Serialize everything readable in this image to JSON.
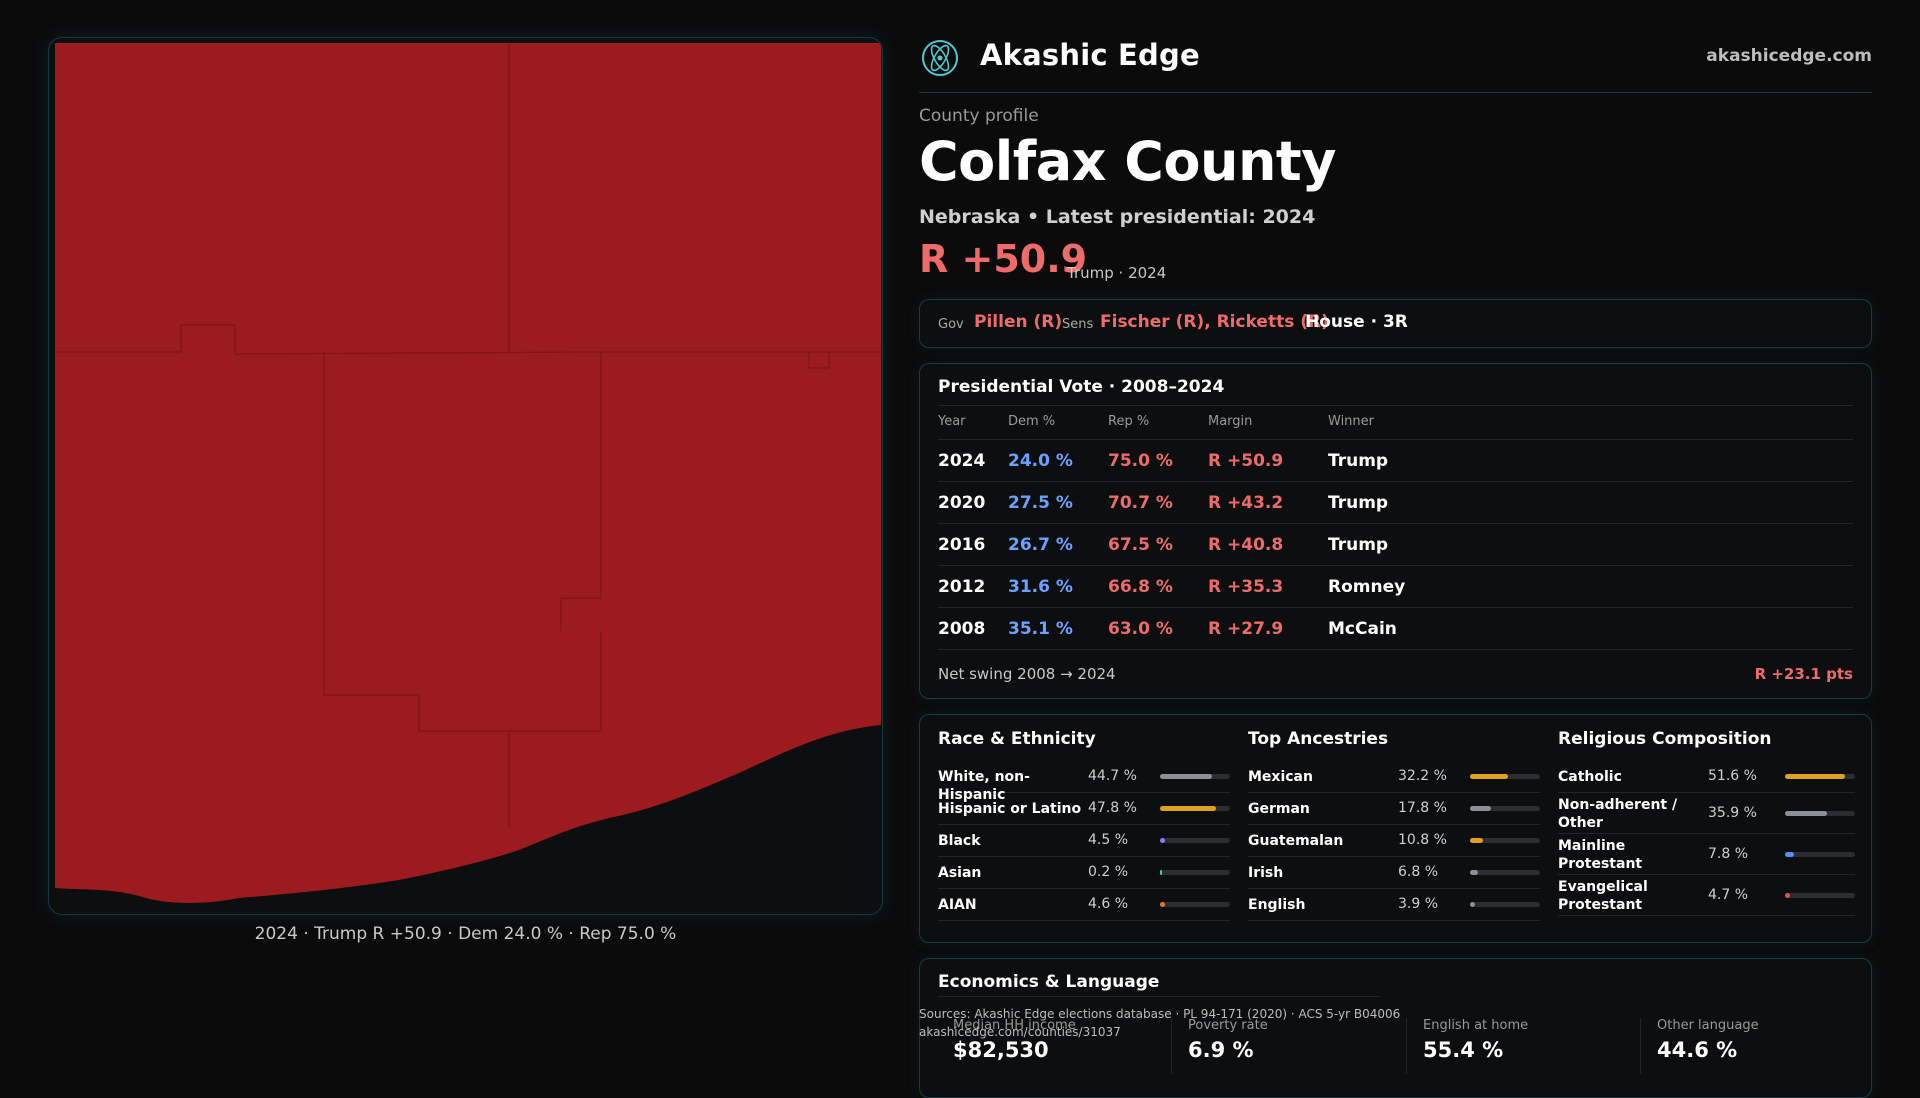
{
  "map": {
    "fill_color": "#9b1b1f",
    "caption": "2024 · Trump R +50.9 · Dem 24.0 % · Rep 75.0 %"
  },
  "header": {
    "brand": "Akashic Edge",
    "site": "akashicedge.com",
    "logo_icon": "atom-logo-icon"
  },
  "profile": {
    "kicker": "County profile",
    "title": "Colfax County",
    "subtitle": "Nebraska • Latest presidential: 2024",
    "margin": "R +50.9",
    "margin_note": "Trump · 2024"
  },
  "representation": {
    "gov_label": "Gov",
    "gov_value": "Pillen (R)",
    "sens_label": "Sens",
    "sens_value": "Fischer (R), Ricketts (R)",
    "house_value": "House · 3R"
  },
  "presidential": {
    "title": "Presidential Vote · 2008–2024",
    "headers": [
      "Year",
      "Dem %",
      "Rep %",
      "Margin",
      "Winner"
    ],
    "rows": [
      {
        "year": "2024",
        "dem": "24.0 %",
        "rep": "75.0 %",
        "margin": "R +50.9",
        "winner": "Trump"
      },
      {
        "year": "2020",
        "dem": "27.5 %",
        "rep": "70.7 %",
        "margin": "R +43.2",
        "winner": "Trump"
      },
      {
        "year": "2016",
        "dem": "26.7 %",
        "rep": "67.5 %",
        "margin": "R +40.8",
        "winner": "Trump"
      },
      {
        "year": "2012",
        "dem": "31.6 %",
        "rep": "66.8 %",
        "margin": "R +35.3",
        "winner": "Romney"
      },
      {
        "year": "2008",
        "dem": "35.1 %",
        "rep": "63.0 %",
        "margin": "R +27.9",
        "winner": "McCain"
      }
    ],
    "swing_label": "Net swing 2008 → 2024",
    "swing_value": "R +23.1 pts"
  },
  "demographics": {
    "race": {
      "title": "Race & Ethnicity",
      "items": [
        {
          "name": "White, non-Hispanic",
          "pct": "44.7 %",
          "value": 44.7,
          "color": "#8a8f98"
        },
        {
          "name": "Hispanic or Latino",
          "pct": "47.8 %",
          "value": 47.8,
          "color": "#e0a21c"
        },
        {
          "name": "Black",
          "pct": "4.5 %",
          "value": 4.5,
          "color": "#8a7cff"
        },
        {
          "name": "Asian",
          "pct": "0.2 %",
          "value": 0.2,
          "color": "#4ec9b0"
        },
        {
          "name": "AIAN",
          "pct": "4.6 %",
          "value": 4.6,
          "color": "#e07a2c"
        }
      ]
    },
    "ancestry": {
      "title": "Top Ancestries",
      "items": [
        {
          "name": "Mexican",
          "pct": "32.2 %",
          "value": 32.2,
          "color": "#e0a21c"
        },
        {
          "name": "German",
          "pct": "17.8 %",
          "value": 17.8,
          "color": "#8a8f98"
        },
        {
          "name": "Guatemalan",
          "pct": "10.8 %",
          "value": 10.8,
          "color": "#e0a21c"
        },
        {
          "name": "Irish",
          "pct": "6.8 %",
          "value": 6.8,
          "color": "#8a8f98"
        },
        {
          "name": "English",
          "pct": "3.9 %",
          "value": 3.9,
          "color": "#8a8f98"
        }
      ]
    },
    "religion": {
      "title": "Religious Composition",
      "items": [
        {
          "name": "Catholic",
          "pct": "51.6 %",
          "value": 51.6,
          "color": "#e0a21c"
        },
        {
          "name": "Non-adherent / Other",
          "pct": "35.9 %",
          "value": 35.9,
          "color": "#8a8f98"
        },
        {
          "name": "Mainline Protestant",
          "pct": "7.8 %",
          "value": 7.8,
          "color": "#5a8cff"
        },
        {
          "name": "Evangelical Protestant",
          "pct": "4.7 %",
          "value": 4.7,
          "color": "#e0574f"
        }
      ]
    }
  },
  "economics": {
    "title": "Economics & Language",
    "stats": [
      {
        "label": "Median HH income",
        "value": "$82,530"
      },
      {
        "label": "Poverty rate",
        "value": "6.9 %"
      },
      {
        "label": "English at home",
        "value": "55.4 %"
      },
      {
        "label": "Other language",
        "value": "44.6 %"
      }
    ]
  },
  "sources": {
    "line1": "Sources: Akashic Edge elections database · PL 94-171 (2020) · ACS 5-yr B04006",
    "line2": "akashicedge.com/counties/31037"
  }
}
